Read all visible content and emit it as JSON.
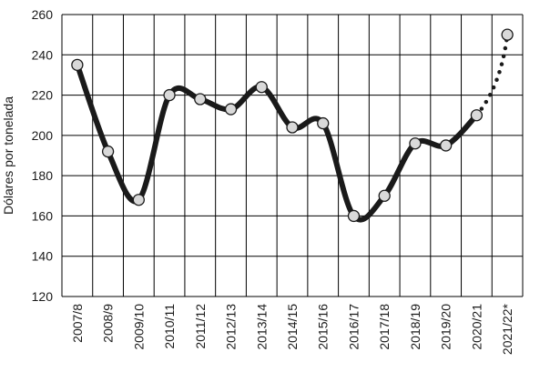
{
  "chart_data": {
    "type": "line",
    "title": "",
    "xlabel": "",
    "ylabel": "Dólares por tonelada",
    "ylim": [
      120,
      260
    ],
    "yticks": [
      120,
      140,
      160,
      180,
      200,
      220,
      240,
      260
    ],
    "grid": true,
    "legend": "none",
    "categories": [
      "2007/8",
      "2008/9",
      "2009/10",
      "2010/11",
      "2011/12",
      "2012/13",
      "2013/14",
      "2014/15",
      "2015/16",
      "2016/17",
      "2017/18",
      "2018/19",
      "2019/20",
      "2020/21",
      "2021/22*"
    ],
    "series": [
      {
        "values": [
          235,
          192,
          168,
          220,
          218,
          213,
          224,
          204,
          206,
          160,
          170,
          196,
          195,
          210,
          250
        ],
        "solid_through": "2020/21",
        "dotted_segment": [
          "2020/21",
          "2021/22*"
        ],
        "line_color": "#1a1a1a",
        "marker_fill": "#d9d9d9"
      }
    ]
  }
}
